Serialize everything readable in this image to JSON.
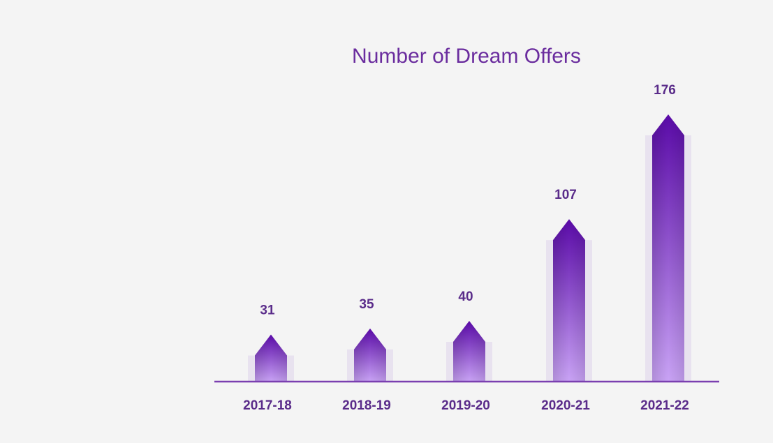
{
  "chart_data": {
    "type": "bar",
    "title": "Number of Dream Offers",
    "categories": [
      "2017-18",
      "2018-19",
      "2019-20",
      "2020-21",
      "2021-22"
    ],
    "values": [
      31,
      35,
      40,
      107,
      176
    ],
    "xlabel": "",
    "ylabel": "",
    "ylim": [
      0,
      176
    ],
    "grid": false,
    "colors": {
      "bar_top": "#5a0aa8",
      "bar_bottom": "#c9a3f5",
      "axis": "#7a3fb0",
      "text": "#5a2c8a",
      "title": "#6a2c9e"
    }
  }
}
